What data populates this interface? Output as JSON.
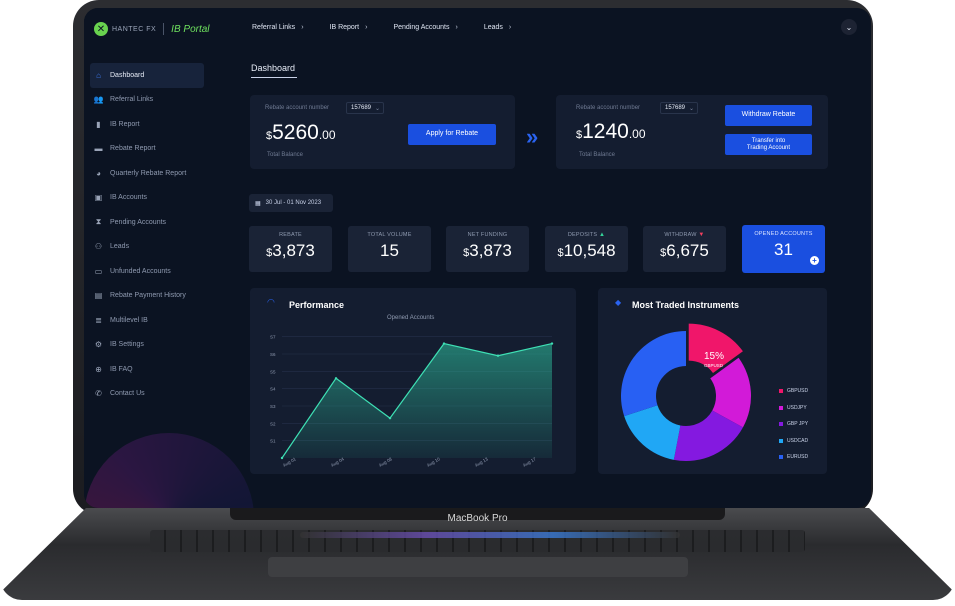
{
  "device": {
    "label": "MacBook Pro"
  },
  "brand": {
    "logo_text": "HANTEC FX",
    "portal_label": "IB Portal"
  },
  "topnav": [
    {
      "label": "Referral Links"
    },
    {
      "label": "IB Report"
    },
    {
      "label": "Pending Accounts"
    },
    {
      "label": "Leads"
    }
  ],
  "sidebar": {
    "items": [
      {
        "label": "Dashboard",
        "icon": "home-icon"
      },
      {
        "label": "Referral Links",
        "icon": "users-icon"
      },
      {
        "label": "IB Report",
        "icon": "bar-chart-icon"
      },
      {
        "label": "Rebate Report",
        "icon": "folder-icon"
      },
      {
        "label": "Quarterly Rebate Report",
        "icon": "pie-icon"
      },
      {
        "label": "IB Accounts",
        "icon": "accounts-icon"
      },
      {
        "label": "Pending Accounts",
        "icon": "hourglass-icon"
      },
      {
        "label": "Leads",
        "icon": "leads-icon"
      },
      {
        "label": "Unfunded Accounts",
        "icon": "wallet-icon"
      },
      {
        "label": "Rebate Payment History",
        "icon": "history-icon"
      },
      {
        "label": "Multilevel IB",
        "icon": "layers-icon"
      },
      {
        "label": "IB Settings",
        "icon": "gear-icon"
      },
      {
        "label": "IB FAQ",
        "icon": "help-icon"
      },
      {
        "label": "Contact Us",
        "icon": "phone-icon"
      }
    ]
  },
  "main": {
    "title": "Dashboard",
    "rebate_left": {
      "label": "Rebate account number",
      "account": "157689",
      "currency": "$",
      "amount_int": "5260",
      "amount_dec": ".00",
      "sub": "Total Balance",
      "button": "Apply for Rebate"
    },
    "rebate_right": {
      "label": "Rebate account number",
      "account": "157689",
      "currency": "$",
      "amount_int": "1240",
      "amount_dec": ".00",
      "sub": "Total Balance",
      "button1": "Withdraw Rebate",
      "button2_line1": "Transfer into",
      "button2_line2": "Trading Account"
    },
    "date_range": "30 Jul - 01 Nov 2023",
    "stats": [
      {
        "label": "REBATE",
        "currency": "$",
        "value": "3,873"
      },
      {
        "label": "TOTAL VOLUME",
        "currency": "",
        "value": "15"
      },
      {
        "label": "NET FUNDING",
        "currency": "$",
        "value": "3,873"
      },
      {
        "label": "DEPOSITS",
        "currency": "$",
        "value": "10,548"
      },
      {
        "label": "WITHDRAW",
        "currency": "$",
        "value": "6,675"
      },
      {
        "label": "OPENED ACCOUNTS",
        "currency": "",
        "value": "31"
      }
    ],
    "performance": {
      "title": "Performance"
    },
    "instruments": {
      "title": "Most Traded Instruments"
    }
  },
  "colors": {
    "accent": "#1a4fe0",
    "area": "#2ec4a0",
    "background": "#0b1322"
  },
  "chart_data": [
    {
      "type": "area",
      "title": "Opened Accounts",
      "x": [
        "Aug 01",
        "Aug 04",
        "Aug 08",
        "Aug 10",
        "Aug 13",
        "Aug 17"
      ],
      "y_ticks": [
        "S1",
        "S2",
        "S3",
        "S4",
        "S5",
        "S6",
        "S7"
      ],
      "series": [
        {
          "values": [
            0,
            4.6,
            2.3,
            6.6,
            5.9,
            6.6
          ]
        }
      ],
      "ylim": [
        0,
        7.5
      ],
      "grid": true
    },
    {
      "type": "pie",
      "donut": true,
      "categories": [
        "GBPUSD",
        "USDJPY",
        "GBP JPY",
        "USDCAD",
        "EURUSD"
      ],
      "values": [
        15,
        18,
        20,
        17,
        30
      ],
      "colors": [
        "#f0166a",
        "#d21ad8",
        "#8419e0",
        "#20a7f5",
        "#2860f3"
      ],
      "data_label": {
        "value": "15%",
        "category": "GBPUSD"
      }
    }
  ]
}
